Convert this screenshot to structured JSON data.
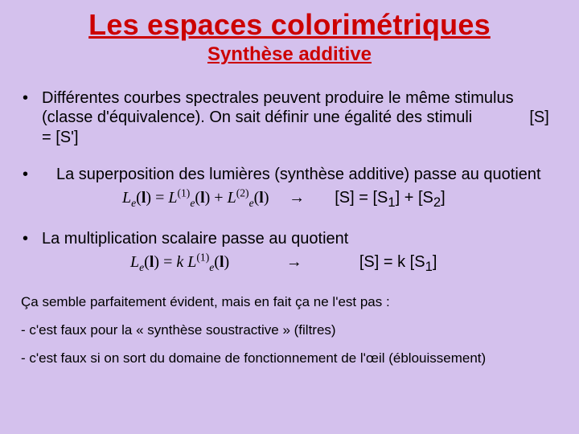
{
  "colors": {
    "background": "#d4c1ed",
    "title": "#cc0000",
    "subtitle": "#cc0000",
    "body": "#000000"
  },
  "title": "Les espaces colorimétriques",
  "subtitle": "Synthèse additive",
  "bullet1_text": "Différentes courbes spectrales peuvent produire le même stimulus (classe d'équivalence). On sait définir une égalité des stimuli",
  "bullet1_eq": "[S] = [S']",
  "bullet2_text": "La superposition  des lumières (synthèse additive) passe au quotient",
  "eq2": {
    "lhs_L": "L",
    "lhs_sub": "e",
    "sup1": "(1)",
    "sup2": "(2)",
    "arrow": "→",
    "rhs": "[S] = [S",
    "rhs_s1": "1",
    "rhs_mid": "] + [S",
    "rhs_s2": "2",
    "rhs_end": "]"
  },
  "bullet3_text": "La multiplication scalaire passe au quotient",
  "eq3": {
    "k": "k",
    "rhs": "[S] = k [S",
    "rhs_s1": "1",
    "rhs_end": "]"
  },
  "notes": {
    "n1": "Ça semble parfaitement évident, mais en fait ça ne l'est pas :",
    "n2": "- c'est faux pour la  « synthèse soustractive » (filtres)",
    "n3": "- c'est faux si on sort du domaine de fonctionnement de l'œil (éblouissement)"
  },
  "lambda_char": "l"
}
